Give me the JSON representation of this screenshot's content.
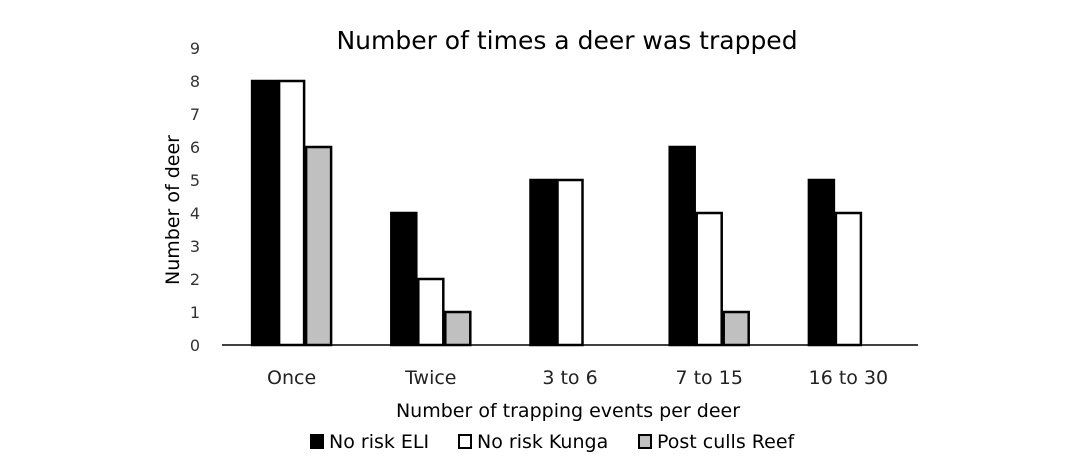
{
  "chart_data": {
    "type": "bar",
    "title": "Number of times a deer was trapped",
    "xlabel": "Number of trapping events per deer",
    "ylabel": "Number of deer",
    "categories": [
      "Once",
      "Twice",
      "3 to 6",
      "7 to 15",
      "16 to 30"
    ],
    "series": [
      {
        "name": "No risk ELI",
        "values": [
          8,
          4,
          5,
          6,
          5
        ],
        "color": "#000000"
      },
      {
        "name": "No risk Kunga",
        "values": [
          8,
          2,
          5,
          4,
          4
        ],
        "color": "#ffffff"
      },
      {
        "name": "Post culls Reef",
        "values": [
          6,
          1,
          0,
          1,
          0
        ],
        "color": "#c0c0c0"
      }
    ],
    "ylim": [
      0,
      9
    ],
    "yticks": [
      0,
      1,
      2,
      3,
      4,
      5,
      6,
      7,
      8,
      9
    ],
    "grid": false,
    "legend_position": "bottom"
  }
}
